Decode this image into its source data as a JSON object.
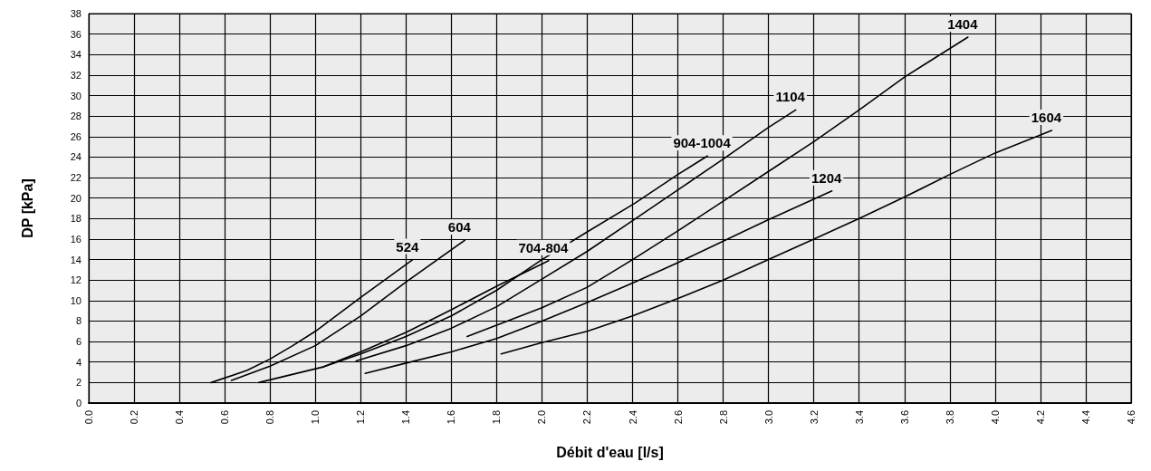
{
  "chart_data": {
    "type": "line",
    "xlabel": "Débit d'eau [l/s]",
    "ylabel": "DP [kPa]",
    "xlim": [
      0,
      4.6
    ],
    "ylim": [
      0,
      38
    ],
    "xticks": [
      {
        "value": 0,
        "label": "0.0"
      },
      {
        "value": 0.2,
        "label": "0.2"
      },
      {
        "value": 0.4,
        "label": "0.4"
      },
      {
        "value": 0.6,
        "label": "0.6"
      },
      {
        "value": 0.8,
        "label": "0.8"
      },
      {
        "value": 1,
        "label": "1.0"
      },
      {
        "value": 1.2,
        "label": "1.2"
      },
      {
        "value": 1.4,
        "label": "1.4"
      },
      {
        "value": 1.6,
        "label": "1.6"
      },
      {
        "value": 1.8,
        "label": "1.8"
      },
      {
        "value": 2,
        "label": "2.0"
      },
      {
        "value": 2.2,
        "label": "2.2"
      },
      {
        "value": 2.4,
        "label": "2.4"
      },
      {
        "value": 2.6,
        "label": "2.6"
      },
      {
        "value": 2.8,
        "label": "2.8"
      },
      {
        "value": 3,
        "label": "3.0"
      },
      {
        "value": 3.2,
        "label": "3.2"
      },
      {
        "value": 3.4,
        "label": "3.4"
      },
      {
        "value": 3.6,
        "label": "3.6"
      },
      {
        "value": 3.8,
        "label": "3.8"
      },
      {
        "value": 4,
        "label": "4.0"
      },
      {
        "value": 4.2,
        "label": "4.2"
      },
      {
        "value": 4.4,
        "label": "4.4"
      },
      {
        "value": 4.6,
        "label": "4.6"
      }
    ],
    "yticks": [
      0,
      2,
      4,
      6,
      8,
      10,
      12,
      14,
      16,
      18,
      20,
      22,
      24,
      26,
      28,
      30,
      32,
      34,
      36,
      38
    ],
    "grid": true,
    "legend": false,
    "marker": "none",
    "line_style": "solid",
    "series": [
      {
        "name": "524",
        "color": "#000000",
        "x": [
          0.54,
          0.7,
          0.8,
          0.9,
          1.0,
          1.2,
          1.43
        ],
        "values": [
          2,
          3.2,
          4.3,
          5.6,
          7.0,
          10.3,
          14
        ]
      },
      {
        "name": "604",
        "color": "#000000",
        "x": [
          0.63,
          0.8,
          1.0,
          1.2,
          1.4,
          1.66
        ],
        "values": [
          2.2,
          3.6,
          5.6,
          8.5,
          11.8,
          15.9
        ]
      },
      {
        "name": "704-804",
        "color": "#000000",
        "x": [
          0.75,
          1.03,
          1.2,
          1.4,
          1.6,
          1.8,
          2.03
        ],
        "values": [
          2,
          3.5,
          5.0,
          6.9,
          9.1,
          11.4,
          13.9
        ]
      },
      {
        "name": "904-1004",
        "color": "#000000",
        "x": [
          1.03,
          1.2,
          1.4,
          1.6,
          1.8,
          2.0,
          2.2,
          2.41,
          2.6,
          2.73
        ],
        "values": [
          3.5,
          4.8,
          6.5,
          8.5,
          11.0,
          14.0,
          16.7,
          19.5,
          22.3,
          24.1
        ]
      },
      {
        "name": "1104",
        "color": "#000000",
        "x": [
          1.18,
          1.4,
          1.6,
          1.8,
          2.0,
          2.2,
          2.4,
          2.6,
          2.8,
          3.0,
          3.12
        ],
        "values": [
          4.1,
          5.6,
          7.3,
          9.4,
          12.1,
          14.8,
          17.8,
          20.8,
          23.8,
          26.9,
          28.6
        ]
      },
      {
        "name": "1204",
        "color": "#000000",
        "x": [
          1.22,
          1.4,
          1.6,
          1.8,
          2.0,
          2.2,
          2.4,
          2.6,
          2.8,
          3.0,
          3.28
        ],
        "values": [
          2.9,
          3.9,
          5.0,
          6.3,
          8.0,
          9.8,
          11.7,
          13.7,
          15.8,
          17.9,
          20.7
        ]
      },
      {
        "name": "1404",
        "color": "#000000",
        "x": [
          1.67,
          1.8,
          2.0,
          2.2,
          2.4,
          2.6,
          2.8,
          3.0,
          3.2,
          3.4,
          3.6,
          3.88
        ],
        "values": [
          6.5,
          7.6,
          9.3,
          11.3,
          14.0,
          16.8,
          19.7,
          22.6,
          25.5,
          28.6,
          31.8,
          35.7
        ]
      },
      {
        "name": "1604",
        "color": "#000000",
        "x": [
          1.82,
          2.0,
          2.2,
          2.4,
          2.6,
          2.8,
          3.0,
          3.2,
          3.4,
          3.6,
          3.8,
          4.0,
          4.25
        ],
        "values": [
          4.8,
          5.9,
          7.0,
          8.5,
          10.2,
          12.0,
          14.0,
          16.0,
          18.0,
          20.1,
          22.3,
          24.4,
          26.6
        ]
      }
    ]
  }
}
